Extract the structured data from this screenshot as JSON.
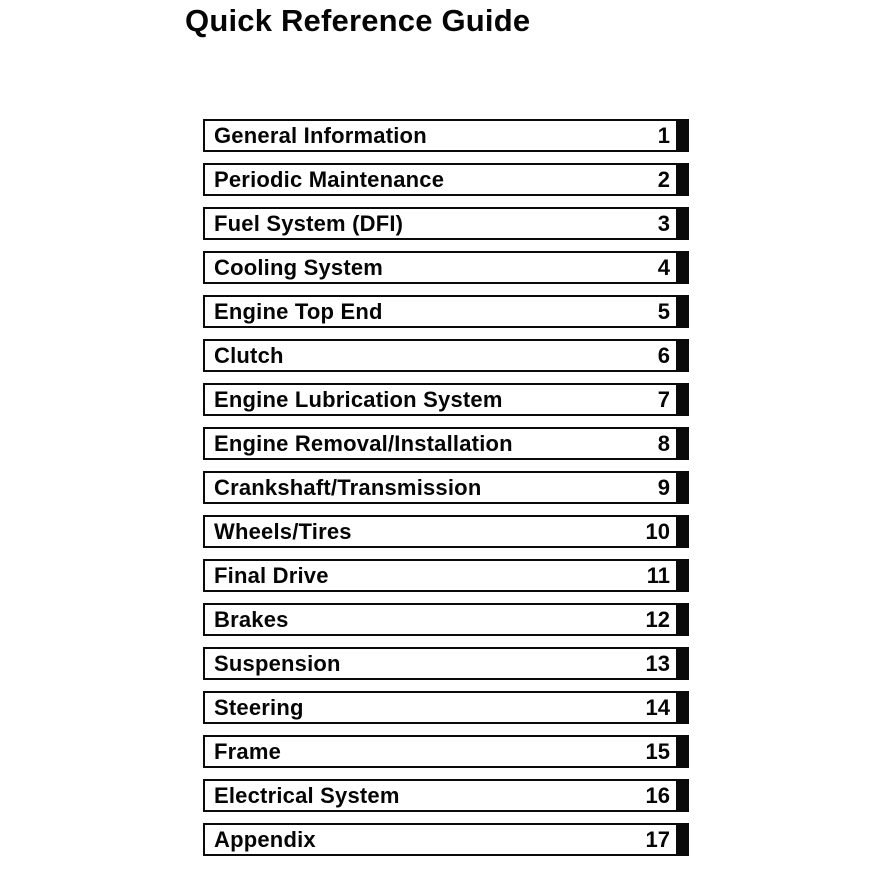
{
  "page": {
    "title": "Quick Reference Guide",
    "background": "#ffffff",
    "ink": "#000000"
  },
  "sections": [
    {
      "label": "General Information",
      "number": "1"
    },
    {
      "label": "Periodic Maintenance",
      "number": "2"
    },
    {
      "label": "Fuel System (DFI)",
      "number": "3"
    },
    {
      "label": "Cooling System",
      "number": "4"
    },
    {
      "label": "Engine Top End",
      "number": "5"
    },
    {
      "label": "Clutch",
      "number": "6"
    },
    {
      "label": "Engine Lubrication System",
      "number": "7"
    },
    {
      "label": "Engine Removal/Installation",
      "number": "8"
    },
    {
      "label": "Crankshaft/Transmission",
      "number": "9"
    },
    {
      "label": "Wheels/Tires",
      "number": "10"
    },
    {
      "label": "Final Drive",
      "number": "11"
    },
    {
      "label": "Brakes",
      "number": "12"
    },
    {
      "label": "Suspension",
      "number": "13"
    },
    {
      "label": "Steering",
      "number": "14"
    },
    {
      "label": "Frame",
      "number": "15"
    },
    {
      "label": "Electrical System",
      "number": "16"
    },
    {
      "label": "Appendix",
      "number": "17"
    }
  ]
}
